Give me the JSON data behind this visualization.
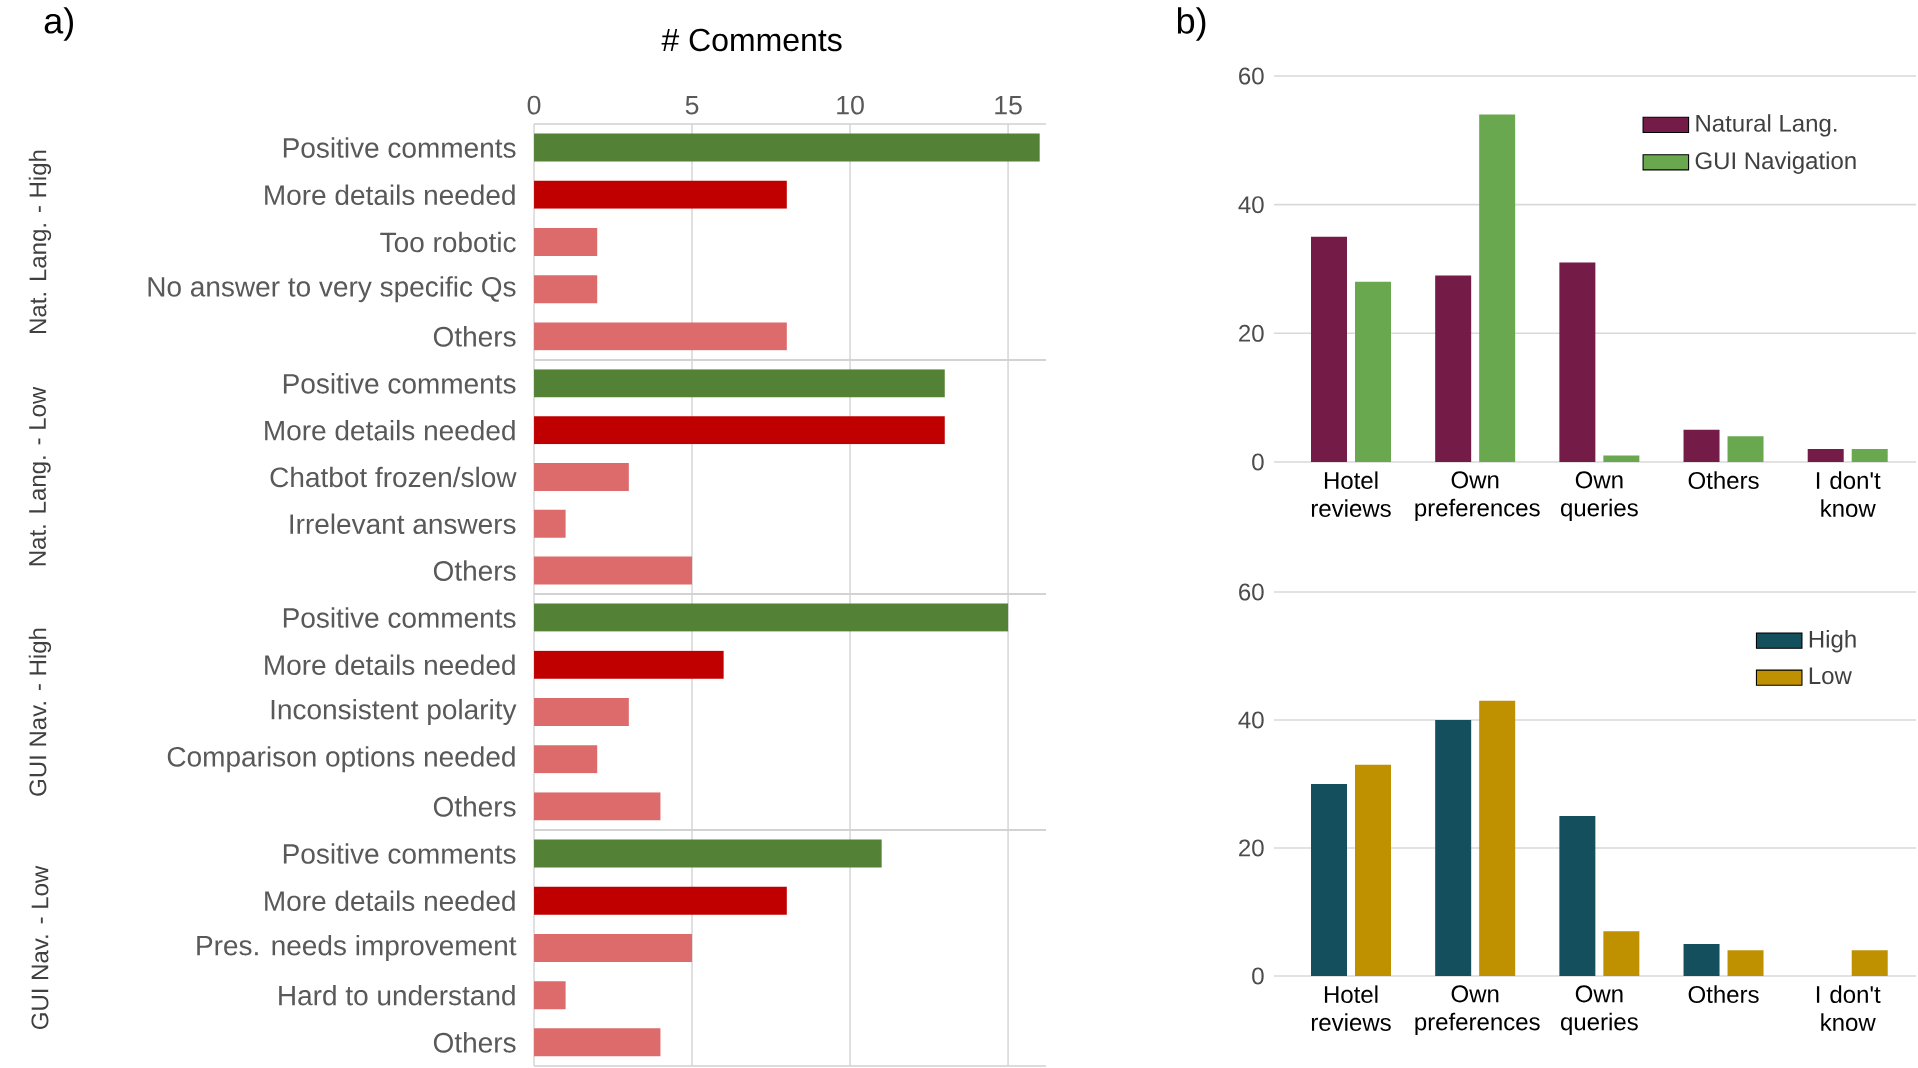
{
  "chart_data": [
    {
      "type": "bar",
      "orientation": "horizontal",
      "title": "a)",
      "xlabel": "# Comments",
      "ylabel": "Nat. Lang. - High",
      "categories": [
        "Positive comments",
        "More details needed",
        "Too robotic",
        "No answer to very specific Qs",
        "Others"
      ],
      "values": [
        16,
        8,
        2,
        2,
        8
      ],
      "colors": [
        "#538135",
        "#c00000",
        "#dd6b6b",
        "#dd6b6b",
        "#dd6b6b"
      ],
      "xlim": [
        0,
        16.2
      ],
      "xticks": [
        0,
        5,
        10,
        15
      ],
      "grid": "x"
    },
    {
      "type": "bar",
      "orientation": "horizontal",
      "ylabel": "Nat. Lang. - Low",
      "categories": [
        "Positive comments",
        "More details needed",
        "Chatbot frozen/slow",
        "Irrelevant answers",
        "Others"
      ],
      "values": [
        13,
        13,
        3,
        1,
        5
      ],
      "colors": [
        "#538135",
        "#c00000",
        "#dd6b6b",
        "#dd6b6b",
        "#dd6b6b"
      ],
      "xlim": [
        0,
        16.2
      ],
      "xticks": [
        0,
        5,
        10,
        15
      ],
      "grid": "x",
      "tick_labels": "y"
    },
    {
      "type": "bar",
      "orientation": "horizontal",
      "ylabel": "GUI Nav. - High",
      "categories": [
        "Positive comments",
        "More details needed",
        "Inconsistent polarity",
        "Comparison options needed",
        "Others"
      ],
      "values": [
        15,
        6,
        3,
        2,
        4
      ],
      "colors": [
        "#538135",
        "#c00000",
        "#dd6b6b",
        "#dd6b6b",
        "#dd6b6b"
      ],
      "xlim": [
        0,
        16.2
      ],
      "xticks": [
        0,
        5,
        10,
        15
      ],
      "grid": "x",
      "tick_labels": "y"
    },
    {
      "type": "bar",
      "orientation": "horizontal",
      "ylabel": "GUI Nav. - Low",
      "categories": [
        "Positive comments",
        "More details needed",
        "Pres. needs improvement",
        "Hard to understand",
        "Others"
      ],
      "values": [
        11,
        8,
        5,
        1,
        4
      ],
      "colors": [
        "#538135",
        "#c00000",
        "#dd6b6b",
        "#dd6b6b",
        "#dd6b6b"
      ],
      "xlim": [
        0,
        16.2
      ],
      "xticks": [
        0,
        5,
        10,
        15
      ],
      "grid": "x",
      "tick_labels": "y"
    },
    {
      "type": "bar",
      "title": "b)",
      "categories": [
        "Hotel reviews",
        "Own preferences",
        "Own queries",
        "Others",
        "I don't know"
      ],
      "series": [
        {
          "name": "Natural Lang.",
          "color": "#741b47",
          "values": [
            35,
            29,
            31,
            5,
            2
          ]
        },
        {
          "name": "GUI Navigation",
          "color": "#6aa84f",
          "values": [
            28,
            54,
            1,
            4,
            2
          ]
        }
      ],
      "ylim": [
        0,
        60
      ],
      "yticks": [
        0,
        20,
        40,
        60
      ],
      "grid": "y",
      "legend": "top right"
    },
    {
      "type": "bar",
      "categories": [
        "Hotel reviews",
        "Own preferences",
        "Own queries",
        "Others",
        "I don't know"
      ],
      "series": [
        {
          "name": "High",
          "color": "#134f5c",
          "values": [
            30,
            40,
            25,
            5,
            0
          ]
        },
        {
          "name": "Low",
          "color": "#bf9000",
          "values": [
            33,
            43,
            7,
            4,
            4
          ]
        }
      ],
      "ylim": [
        0,
        60
      ],
      "yticks": [
        0,
        20,
        40,
        60
      ],
      "grid": "y",
      "legend": "top right"
    }
  ]
}
